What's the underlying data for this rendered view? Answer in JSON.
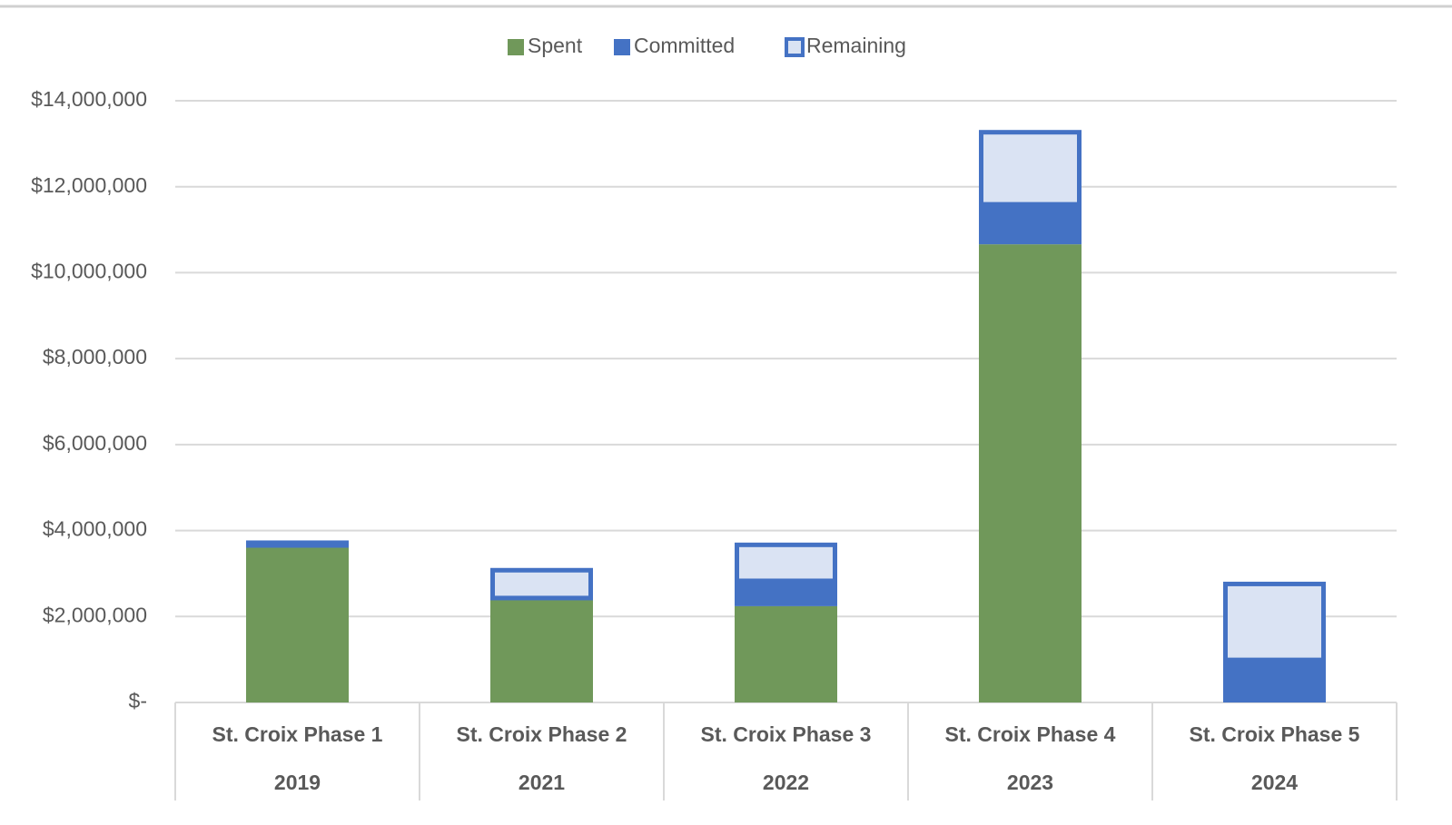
{
  "chart_data": {
    "type": "stacked_bar",
    "categories": [
      "St. Croix Phase 1",
      "St. Croix Phase 2",
      "St. Croix Phase 3",
      "St. Croix Phase 4",
      "St. Croix Phase 5"
    ],
    "category_years": [
      "2019",
      "2021",
      "2022",
      "2023",
      "2024"
    ],
    "series": [
      {
        "name": "Spent",
        "color": "#70985a",
        "values": [
          3600000,
          2430000,
          2240000,
          10660000,
          0
        ]
      },
      {
        "name": "Committed",
        "color": "#4472c4",
        "values": [
          170000,
          0,
          590000,
          930000,
          990000
        ]
      },
      {
        "name": "Remaining",
        "color": "#dae3f3",
        "border_color": "#4472c4",
        "values": [
          0,
          700000,
          890000,
          1730000,
          1820000
        ]
      }
    ],
    "ylim": [
      0,
      14000000
    ],
    "yticks": [
      {
        "value": 0,
        "label": "$-"
      },
      {
        "value": 2000000,
        "label": "$2,000,000"
      },
      {
        "value": 4000000,
        "label": "$4,000,000"
      },
      {
        "value": 6000000,
        "label": "$6,000,000"
      },
      {
        "value": 8000000,
        "label": "$8,000,000"
      },
      {
        "value": 10000000,
        "label": "$10,000,000"
      },
      {
        "value": 12000000,
        "label": "$12,000,000"
      },
      {
        "value": 14000000,
        "label": "$14,000,000"
      }
    ],
    "grid": true,
    "legend": "top"
  }
}
